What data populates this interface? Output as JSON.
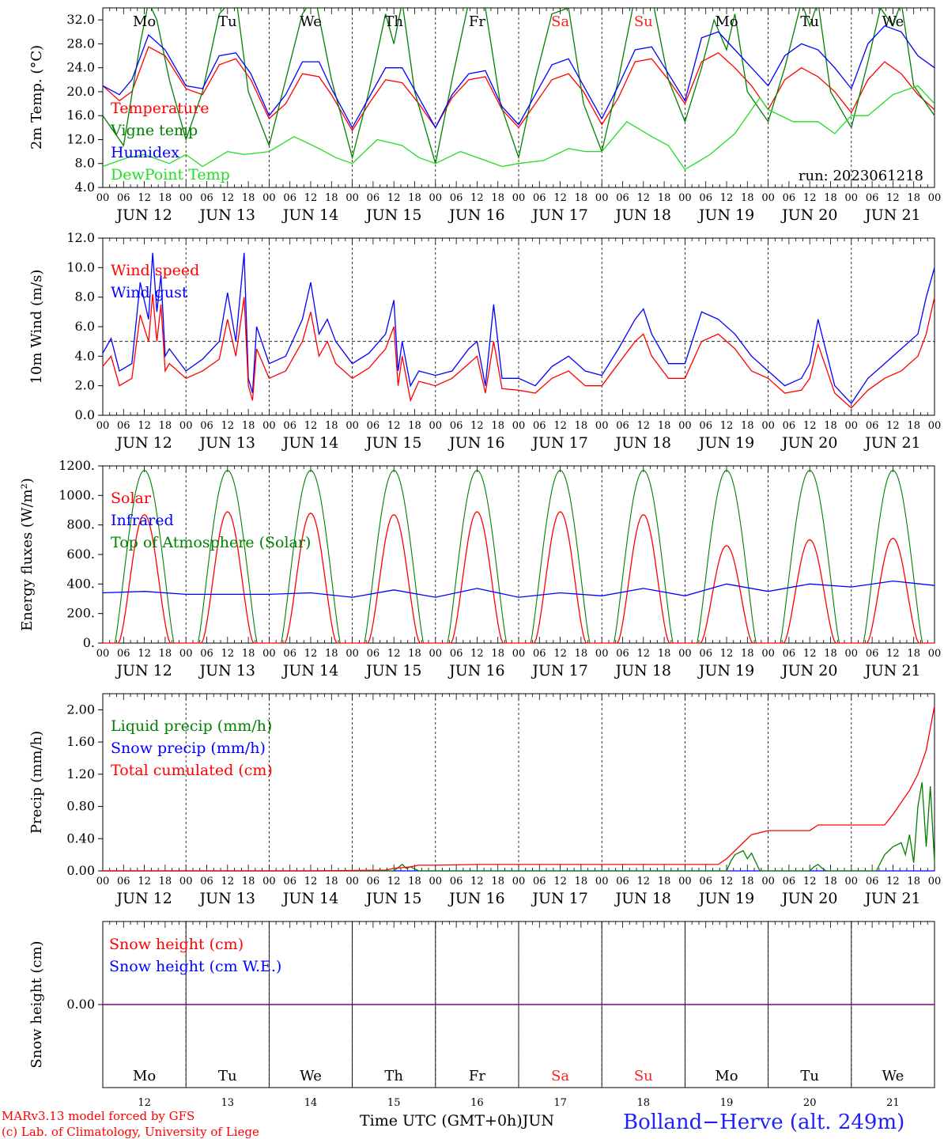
{
  "days": [
    "JUN 12",
    "JUN 13",
    "JUN 14",
    "JUN 15",
    "JUN 16",
    "JUN 17",
    "JUN 18",
    "JUN 19",
    "JUN 20",
    "JUN 21"
  ],
  "weekdays": [
    "Mo",
    "Tu",
    "We",
    "Th",
    "Fr",
    "Sa",
    "Su",
    "Mo",
    "Tu",
    "We"
  ],
  "day_numbers": [
    "12",
    "13",
    "14",
    "15",
    "16",
    "17",
    "18",
    "19",
    "20",
    "21"
  ],
  "hour_ticks": [
    "00",
    "06",
    "12",
    "18"
  ],
  "end_tick": "00",
  "run_label": "run: 2023061218",
  "footer": {
    "model": "MARv3.13 model forced by GFS",
    "credit": "(c) Lab. of Climatology, University of Liege",
    "time_label": "Time UTC (GMT+0h)",
    "month": "JUN",
    "station": "Bolland−Herve (alt. 249m)"
  },
  "colors": {
    "red": "#ff0000",
    "green": "#008000",
    "blue": "#0000ff",
    "lightgreen": "#22dd22",
    "purple": "#800080",
    "weekend": "#ff2020"
  },
  "chart_data": [
    {
      "type": "line",
      "ylabel": "2m Temp. (°C)",
      "ylim": [
        4,
        34
      ],
      "yticks": [
        "4.0",
        "8.0",
        "12.0",
        "16.0",
        "20.0",
        "24.0",
        "28.0",
        "32.0"
      ],
      "series": [
        {
          "name": "Temperature",
          "color": "red",
          "x": [
            0,
            0.2,
            0.35,
            0.55,
            0.75,
            1.0,
            1.2,
            1.4,
            1.6,
            1.78,
            2.0,
            2.2,
            2.4,
            2.6,
            2.75,
            3.0,
            3.2,
            3.4,
            3.6,
            3.8,
            4.0,
            4.2,
            4.4,
            4.6,
            4.8,
            5.0,
            5.2,
            5.4,
            5.6,
            5.78,
            6.0,
            6.2,
            6.4,
            6.6,
            6.8,
            7.0,
            7.2,
            7.4,
            7.6,
            7.8,
            8.0,
            8.2,
            8.4,
            8.6,
            8.8,
            9.0,
            9.2,
            9.4,
            9.6,
            9.8,
            10.0
          ],
          "y": [
            21,
            18.5,
            20,
            27.5,
            26,
            20.5,
            19.5,
            24.5,
            25.5,
            22,
            15.5,
            18,
            23,
            22.5,
            19.5,
            13.5,
            18,
            22,
            21.5,
            18,
            14,
            19,
            22,
            22.5,
            17,
            14,
            18,
            22,
            23,
            20,
            14.5,
            19,
            25,
            25.5,
            22,
            18,
            25,
            26.5,
            24,
            21,
            17,
            22,
            24,
            22.5,
            20,
            16.5,
            22,
            25,
            23,
            19.5,
            17
          ]
        },
        {
          "name": "Vigne temp",
          "color": "green",
          "x": [
            0,
            0.25,
            0.45,
            0.55,
            0.65,
            0.8,
            1.0,
            1.2,
            1.4,
            1.6,
            1.75,
            2.0,
            2.2,
            2.4,
            2.55,
            2.75,
            3.0,
            3.2,
            3.4,
            3.5,
            3.6,
            3.75,
            4.0,
            4.2,
            4.4,
            4.6,
            4.78,
            5.0,
            5.2,
            5.4,
            5.6,
            5.78,
            6.0,
            6.2,
            6.4,
            6.6,
            6.8,
            7.0,
            7.2,
            7.35,
            7.5,
            7.6,
            7.75,
            8.0,
            8.2,
            8.4,
            8.5,
            8.6,
            8.75,
            9.0,
            9.2,
            9.35,
            9.5,
            9.6,
            9.75,
            10.0
          ],
          "y": [
            16,
            11,
            28,
            35,
            32,
            22,
            12,
            20,
            33,
            36,
            20,
            11,
            22,
            33,
            36,
            22,
            9,
            20,
            33,
            28,
            35,
            20,
            8,
            22,
            35,
            34,
            18,
            9,
            22,
            33,
            34,
            18,
            10,
            22,
            36,
            36,
            22,
            15,
            24,
            32,
            27,
            33,
            20,
            15,
            24,
            35,
            31,
            35,
            20,
            14,
            25,
            34,
            31,
            35,
            21,
            16
          ]
        },
        {
          "name": "Humidex",
          "color": "blue",
          "x": [
            0,
            0.2,
            0.35,
            0.55,
            0.75,
            1.0,
            1.2,
            1.4,
            1.6,
            1.78,
            2.0,
            2.2,
            2.4,
            2.6,
            2.75,
            3.0,
            3.2,
            3.4,
            3.6,
            3.8,
            4.0,
            4.2,
            4.4,
            4.6,
            4.8,
            5.0,
            5.2,
            5.4,
            5.6,
            5.78,
            6.0,
            6.2,
            6.4,
            6.6,
            6.8,
            7.0,
            7.2,
            7.4,
            7.6,
            7.8,
            8.0,
            8.2,
            8.4,
            8.6,
            8.8,
            9.0,
            9.2,
            9.4,
            9.6,
            9.8,
            10.0
          ],
          "y": [
            21,
            19.5,
            22,
            29.5,
            27,
            21,
            20.5,
            26,
            26.5,
            23,
            16,
            19.5,
            25,
            25,
            20.5,
            14,
            19,
            24,
            24,
            19,
            14,
            19.5,
            23,
            23.5,
            17.5,
            14.5,
            19.5,
            24.5,
            25.5,
            21,
            15.5,
            21,
            27,
            27.5,
            23,
            18.5,
            29,
            30,
            27,
            24,
            21,
            26,
            28,
            27,
            24,
            20.5,
            28,
            31,
            30,
            26,
            24
          ]
        },
        {
          "name": "DewPoint Temp",
          "color": "lightgreen",
          "x": [
            0,
            0.3,
            0.5,
            0.8,
            1.0,
            1.2,
            1.5,
            1.7,
            2.0,
            2.3,
            2.6,
            2.8,
            3.0,
            3.3,
            3.6,
            3.8,
            4.0,
            4.3,
            4.6,
            4.8,
            5.0,
            5.3,
            5.6,
            5.8,
            6.0,
            6.3,
            6.6,
            6.8,
            7.0,
            7.3,
            7.6,
            7.9,
            8.0,
            8.3,
            8.6,
            8.8,
            9.0,
            9.2,
            9.5,
            9.8,
            10.0
          ],
          "y": [
            7.5,
            9,
            9.5,
            8,
            9.5,
            7.5,
            10,
            9.5,
            10,
            12.5,
            10.5,
            9,
            8,
            12,
            11,
            9,
            8,
            10,
            8.5,
            7.5,
            8,
            8.5,
            10.5,
            10,
            10,
            15,
            12.5,
            11,
            7,
            9.5,
            13,
            19,
            17,
            15,
            15,
            13,
            16,
            16,
            19.5,
            21,
            18
          ]
        }
      ],
      "annotations": [
        "run: 2023061218"
      ]
    },
    {
      "type": "line",
      "ylabel": "10m Wind (m/s)",
      "ylim": [
        0,
        12
      ],
      "yticks": [
        "0.0",
        "2.0",
        "4.0",
        "6.0",
        "8.0",
        "10.0",
        "12.0"
      ],
      "reference_line": 5,
      "series": [
        {
          "name": "Wind speed",
          "color": "red",
          "x": [
            0,
            0.1,
            0.2,
            0.35,
            0.45,
            0.55,
            0.6,
            0.65,
            0.7,
            0.75,
            0.8,
            1.0,
            1.2,
            1.4,
            1.5,
            1.6,
            1.7,
            1.75,
            1.8,
            1.85,
            2.0,
            2.2,
            2.4,
            2.5,
            2.6,
            2.7,
            2.8,
            3.0,
            3.2,
            3.4,
            3.5,
            3.55,
            3.6,
            3.7,
            3.8,
            4.0,
            4.2,
            4.4,
            4.5,
            4.6,
            4.7,
            4.8,
            5.0,
            5.2,
            5.4,
            5.6,
            5.8,
            6.0,
            6.2,
            6.4,
            6.5,
            6.6,
            6.8,
            7.0,
            7.2,
            7.4,
            7.6,
            7.8,
            8.0,
            8.2,
            8.4,
            8.5,
            8.6,
            8.8,
            9.0,
            9.2,
            9.4,
            9.6,
            9.8,
            9.9,
            10.0
          ],
          "y": [
            3.3,
            4,
            2,
            2.5,
            6.8,
            5,
            8.2,
            5,
            7.5,
            3,
            3.5,
            2.5,
            3,
            3.8,
            6.5,
            4,
            8,
            2,
            1,
            4.5,
            2.5,
            3,
            5,
            7,
            4,
            5,
            3.5,
            2.5,
            3.2,
            4.5,
            6,
            2,
            4,
            1,
            2.3,
            2,
            2.5,
            3.5,
            4,
            1.5,
            5,
            1.8,
            1.7,
            1.5,
            2.5,
            3,
            2,
            2,
            3.5,
            5,
            5.5,
            4,
            2.5,
            2.5,
            5,
            5.5,
            4.5,
            3,
            2.5,
            1.5,
            1.7,
            2.5,
            4.8,
            1.5,
            0.5,
            1.7,
            2.5,
            3,
            4,
            5.5,
            8
          ]
        },
        {
          "name": "Wind gust",
          "color": "blue",
          "x": [
            0,
            0.1,
            0.2,
            0.35,
            0.45,
            0.55,
            0.6,
            0.65,
            0.7,
            0.75,
            0.8,
            1.0,
            1.2,
            1.4,
            1.5,
            1.6,
            1.7,
            1.75,
            1.8,
            1.85,
            2.0,
            2.2,
            2.4,
            2.5,
            2.6,
            2.7,
            2.8,
            3.0,
            3.2,
            3.4,
            3.5,
            3.55,
            3.6,
            3.7,
            3.8,
            4.0,
            4.2,
            4.4,
            4.5,
            4.6,
            4.7,
            4.8,
            5.0,
            5.2,
            5.4,
            5.6,
            5.8,
            6.0,
            6.2,
            6.4,
            6.5,
            6.6,
            6.8,
            7.0,
            7.2,
            7.4,
            7.6,
            7.8,
            8.0,
            8.2,
            8.4,
            8.5,
            8.6,
            8.8,
            9.0,
            9.2,
            9.4,
            9.6,
            9.8,
            9.9,
            10.0
          ],
          "y": [
            4.2,
            5.2,
            3,
            3.5,
            9,
            6.5,
            11,
            7,
            9.5,
            4,
            4.5,
            3,
            3.8,
            5,
            8.3,
            5,
            11,
            2.5,
            1.5,
            6,
            3.5,
            4,
            6.5,
            9,
            5.5,
            6.5,
            5,
            3.5,
            4.2,
            5.5,
            7.8,
            3,
            5,
            2,
            3,
            2.7,
            3,
            4.5,
            5,
            2,
            7.5,
            2.5,
            2.5,
            2,
            3.3,
            4,
            3,
            2.7,
            4.5,
            6.5,
            7.2,
            5.5,
            3.5,
            3.5,
            7,
            6.5,
            5.5,
            4,
            3,
            2,
            2.5,
            3.5,
            6.5,
            2,
            0.8,
            2.5,
            3.5,
            4.5,
            5.5,
            8,
            10
          ]
        }
      ]
    },
    {
      "type": "line",
      "ylabel": "Energy fluxes (W/m²)",
      "ylim": [
        0,
        1200
      ],
      "yticks": [
        "0.",
        "200.",
        "400.",
        "600.",
        "800.",
        "1000.",
        "1200."
      ],
      "series": [
        {
          "name": "Solar",
          "color": "red",
          "day_peaks": [
            870,
            890,
            880,
            870,
            890,
            890,
            870,
            660,
            700,
            710
          ]
        },
        {
          "name": "Infrared",
          "color": "blue",
          "x": [
            0,
            0.5,
            1.0,
            1.5,
            2.0,
            2.5,
            3.0,
            3.5,
            4.0,
            4.5,
            5.0,
            5.5,
            6.0,
            6.5,
            7.0,
            7.5,
            8.0,
            8.5,
            9.0,
            9.5,
            10.0
          ],
          "y": [
            340,
            350,
            330,
            330,
            330,
            340,
            310,
            360,
            310,
            370,
            310,
            340,
            320,
            370,
            320,
            400,
            350,
            400,
            380,
            420,
            390
          ]
        },
        {
          "name": "Top of Atmosphere (Solar)",
          "color": "green",
          "day_peaks": [
            1170,
            1170,
            1170,
            1170,
            1170,
            1170,
            1170,
            1170,
            1170,
            1170
          ]
        }
      ]
    },
    {
      "type": "line",
      "ylabel": "Precip (mm/h)",
      "ylim": [
        0,
        2.2
      ],
      "yticks": [
        "0.00",
        "0.40",
        "0.80",
        "1.20",
        "1.60",
        "2.00"
      ],
      "series": [
        {
          "name": "Liquid precip (mm/h)",
          "color": "green",
          "x": [
            0,
            3.5,
            3.55,
            3.6,
            3.65,
            3.7,
            3.8,
            7.5,
            7.55,
            7.6,
            7.7,
            7.75,
            7.8,
            7.9,
            8.5,
            8.55,
            8.6,
            8.65,
            8.7,
            9.3,
            9.4,
            9.5,
            9.6,
            9.65,
            9.7,
            9.75,
            9.8,
            9.85,
            9.9,
            9.95,
            10.0
          ],
          "y": [
            0,
            0,
            0.04,
            0.08,
            0.03,
            0.05,
            0,
            0,
            0.12,
            0.2,
            0.25,
            0.15,
            0.22,
            0,
            0,
            0.05,
            0.08,
            0.03,
            0,
            0,
            0.2,
            0.3,
            0.35,
            0.2,
            0.45,
            0.1,
            0.8,
            1.1,
            0.3,
            1.05,
            0.1
          ]
        },
        {
          "name": "Snow precip (mm/h)",
          "color": "blue",
          "x": [
            0,
            10
          ],
          "y": [
            0,
            0
          ]
        },
        {
          "name": "Total cumulated (cm)",
          "color": "red",
          "x": [
            0,
            2.5,
            3.4,
            3.5,
            3.7,
            3.8,
            4.0,
            4.5,
            5.0,
            7.0,
            7.4,
            7.5,
            7.7,
            7.8,
            8.0,
            8.5,
            8.6,
            9.4,
            9.5,
            9.7,
            9.8,
            9.9,
            10.0
          ],
          "y": [
            0,
            0,
            0.01,
            0.03,
            0.05,
            0.07,
            0.07,
            0.08,
            0.08,
            0.08,
            0.08,
            0.15,
            0.35,
            0.45,
            0.5,
            0.5,
            0.57,
            0.57,
            0.7,
            1.0,
            1.2,
            1.5,
            2.05
          ]
        }
      ]
    },
    {
      "type": "line",
      "ylabel": "Snow height (cm)",
      "yticks": [
        "0.00"
      ],
      "series": [
        {
          "name": "Snow height (cm)",
          "color": "red",
          "x": [
            0,
            10
          ],
          "y": [
            0,
            0
          ]
        },
        {
          "name": "Snow height (cm W.E.)",
          "color": "blue",
          "x": [
            0,
            10
          ],
          "y": [
            0,
            0
          ]
        }
      ]
    }
  ]
}
